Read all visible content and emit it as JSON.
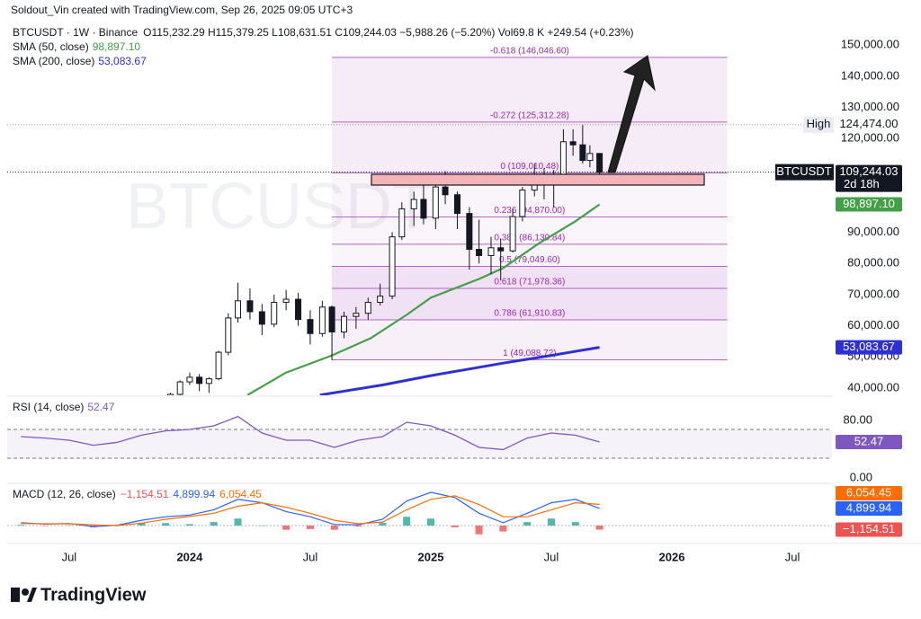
{
  "chart_data": {
    "type": "candlestick",
    "credit": "Soldout_Vin created with TradingView.com, Sep 26, 2025 09:05 UTC+3",
    "symbol": "BTCUSDT · 1W · Binance",
    "ohlc_line": "O115,232.29 H115,379.25 L108,631.51 C109,244.03 −5,988.26 (−5.20%) Vol69.8 K +249.54 (+0.23%)",
    "watermark": "BTCUSDT",
    "brand": "TradingView",
    "xlim": [
      2023.243,
      2026.664
    ],
    "xticks": [
      {
        "value": 2023.5,
        "label": "Jul"
      },
      2024,
      {
        "value": 2024.5,
        "label": "Jul"
      },
      2025,
      {
        "value": 2025.5,
        "label": "Jul"
      },
      2026,
      {
        "value": 2026.5,
        "label": "Jul"
      }
    ],
    "ylim": [
      37700,
      155800
    ],
    "yticks": [
      {
        "value": 150000,
        "label": "150,000.00"
      },
      {
        "value": 140000,
        "label": "140,000.00"
      },
      {
        "value": 130000,
        "label": "130,000.00"
      },
      {
        "value": 120000,
        "label": "120,000.00"
      },
      {
        "value": 90000,
        "label": "90,000.00"
      },
      {
        "value": 80000,
        "label": "80,000.00"
      },
      {
        "value": 70000,
        "label": "70,000.00"
      },
      {
        "value": 60000,
        "label": "60,000.00"
      },
      {
        "value": 50000,
        "label": "50,000.00"
      },
      {
        "value": 40000,
        "label": "40,000.00"
      }
    ],
    "candles": {
      "x": [
        2023.92,
        2023.96,
        2024.0,
        2024.04,
        2024.08,
        2024.12,
        2024.16,
        2024.2,
        2024.25,
        2024.3,
        2024.35,
        2024.4,
        2024.45,
        2024.5,
        2024.55,
        2024.59,
        2024.64,
        2024.69,
        2024.74,
        2024.79,
        2024.84,
        2024.88,
        2024.93,
        2024.97,
        2025.02,
        2025.06,
        2025.11,
        2025.16,
        2025.2,
        2025.25,
        2025.29,
        2025.34,
        2025.38,
        2025.43,
        2025.47,
        2025.51,
        2025.55,
        2025.59,
        2025.63,
        2025.66,
        2025.7
      ],
      "open": [
        37000,
        38000,
        42000,
        43500,
        41500,
        43000,
        51500,
        62500,
        68000,
        64500,
        60500,
        67500,
        68500,
        62000,
        57500,
        66000,
        58000,
        63000,
        64000,
        67500,
        69500,
        88500,
        97500,
        100500,
        94500,
        104500,
        102000,
        96000,
        84500,
        82500,
        85000,
        84000,
        95000,
        103500,
        107500,
        105500,
        108500,
        119000,
        118000,
        113000,
        115232.29
      ],
      "high": [
        38500,
        42500,
        45000,
        44500,
        43500,
        52000,
        64000,
        73800,
        72000,
        67000,
        70000,
        71500,
        70500,
        65000,
        68000,
        66500,
        64500,
        66000,
        69000,
        73500,
        90000,
        99600,
        103000,
        108300,
        106000,
        109600,
        103000,
        98000,
        94000,
        88500,
        88000,
        97500,
        104500,
        111900,
        110500,
        110000,
        123000,
        123000,
        124474,
        117900,
        115379.25
      ],
      "low": [
        36000,
        37500,
        41000,
        39000,
        38500,
        42500,
        50500,
        61000,
        62000,
        57000,
        59500,
        65000,
        60000,
        54000,
        56500,
        49000,
        56000,
        59000,
        62000,
        66500,
        68500,
        87500,
        92000,
        92500,
        91000,
        99000,
        91000,
        78000,
        80000,
        76500,
        74500,
        83500,
        93500,
        101500,
        100500,
        98000,
        107500,
        114500,
        112000,
        110800,
        108631.51
      ],
      "close": [
        38000,
        42000,
        43500,
        41500,
        43000,
        51500,
        62500,
        68000,
        64500,
        60500,
        67500,
        68500,
        62000,
        57500,
        66000,
        58000,
        63000,
        64000,
        67500,
        69500,
        88500,
        97500,
        100500,
        94500,
        104500,
        102000,
        96000,
        84500,
        82500,
        85000,
        84000,
        95000,
        103500,
        107500,
        105500,
        108500,
        119000,
        118000,
        113000,
        115232.29,
        109244.03
      ]
    },
    "sma": [
      {
        "name": "SMA (50, close)",
        "value_label": "98,897.10",
        "color": "#43a047",
        "x": [
          2024.24,
          2024.4,
          2024.59,
          2024.75,
          2024.9,
          2025.0,
          2025.2,
          2025.3,
          2025.45,
          2025.6,
          2025.7
        ],
        "values": [
          37800,
          45000,
          50500,
          56000,
          63500,
          69000,
          75000,
          78500,
          86500,
          93500,
          98897.1
        ]
      },
      {
        "name": "SMA (200, close)",
        "value_label": "53,083.67",
        "color": "#2f2fd6",
        "x": [
          2024.54,
          2024.8,
          2025.0,
          2025.3,
          2025.5,
          2025.7
        ],
        "values": [
          37800,
          41000,
          44000,
          48000,
          50500,
          53083.67
        ]
      }
    ],
    "fib": {
      "x": [
        2024.59,
        2026.23
      ],
      "color": "#9c27b0",
      "levels": [
        {
          "value": 146046.6,
          "label": "-0.618 (146,046.60)"
        },
        {
          "value": 125312.28,
          "label": "-0.272 (125,312.28)"
        },
        {
          "value": 109010.48,
          "label": "0 (109,010.48)"
        },
        {
          "value": 94870,
          "label": "0.236 (94,870.00)"
        },
        {
          "value": 86130.84,
          "label": "0.382 (86,130.84)"
        },
        {
          "value": 79049.6,
          "label": "0.5 (79,049.60)"
        },
        {
          "value": 71978.36,
          "label": "0.618 (71,978.36)"
        },
        {
          "value": 61910.83,
          "label": "0.786 (61,910.83)"
        },
        {
          "value": 49088.72,
          "label": "1 (49,088.72)"
        }
      ]
    },
    "high": {
      "name": "High",
      "value": 124474,
      "value_label": "124,474.00"
    },
    "last": {
      "name": "BTCUSDT",
      "value": 109244.03,
      "value_label": "109,244.03",
      "countdown": "2d 18h"
    },
    "indicator_x": [
      2023.3,
      2023.4,
      2023.5,
      2023.6,
      2023.7,
      2023.8,
      2023.9,
      2024.0,
      2024.1,
      2024.2,
      2024.3,
      2024.4,
      2024.5,
      2024.6,
      2024.7,
      2024.8,
      2024.9,
      2025.0,
      2025.1,
      2025.2,
      2025.3,
      2025.4,
      2025.5,
      2025.6,
      2025.7
    ],
    "rsi": {
      "name": "RSI (14, close)",
      "color": "#7e57c2",
      "value_label": "52.47",
      "ylim": [
        -7.5,
        111.25
      ],
      "yticks": [
        {
          "value": 80,
          "label": "80.00"
        },
        {
          "value": 0,
          "label": "0.00"
        }
      ],
      "bands": [
        70,
        30
      ],
      "values": [
        60,
        58,
        55,
        48,
        52,
        62,
        68,
        70,
        75,
        88,
        65,
        55,
        55,
        45,
        55,
        60,
        80,
        75,
        62,
        45,
        42,
        58,
        65,
        62,
        52.47
      ]
    },
    "macd": {
      "name": "MACD (12, 26, close)",
      "ylim": [
        -3850,
        11540
      ],
      "histogram": {
        "value_label": "−1,154.51",
        "color": "#26a69a",
        "neg_color": "#ef5350",
        "values": [
          200,
          -100,
          100,
          -500,
          100,
          800,
          700,
          400,
          1000,
          2000,
          0,
          -1200,
          -1000,
          -1200,
          -300,
          800,
          2500,
          2000,
          -500,
          -2500,
          -1700,
          1000,
          2000,
          1000,
          -1154.51
        ]
      },
      "macd": {
        "value_label": "4,899.94",
        "color": "#2962ff",
        "values": [
          800,
          400,
          600,
          -300,
          100,
          1500,
          2500,
          3000,
          4500,
          7500,
          6500,
          4000,
          2500,
          300,
          200,
          1800,
          7000,
          9500,
          8000,
          3500,
          800,
          3500,
          6500,
          7500,
          4899.94
        ]
      },
      "signal": {
        "value_label": "6,054.45",
        "color": "#ff6d00",
        "values": [
          600,
          500,
          500,
          200,
          0,
          700,
          1800,
          2600,
          3500,
          5500,
          6500,
          5200,
          3500,
          1500,
          500,
          1000,
          4500,
          7500,
          8500,
          6000,
          2500,
          2500,
          4500,
          6500,
          6054.45
        ]
      }
    }
  }
}
